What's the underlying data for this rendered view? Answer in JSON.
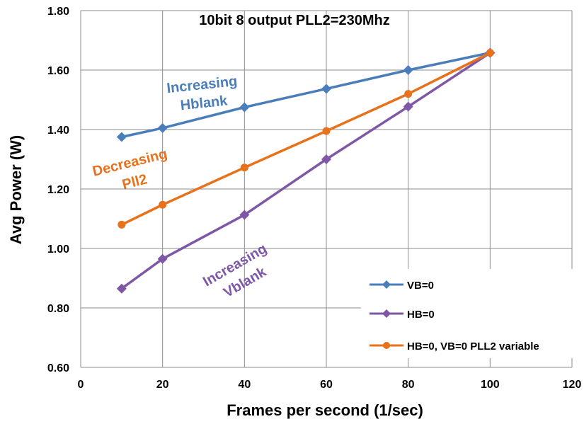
{
  "chart_data": {
    "type": "line",
    "title": "10bit 8 output PLL2=230Mhz",
    "xlabel": "Frames per second (1/sec)",
    "ylabel": "Avg Power (W)",
    "xlim": [
      0,
      120
    ],
    "ylim": [
      0.6,
      1.8
    ],
    "x_ticks": [
      "0",
      "20",
      "40",
      "60",
      "80",
      "100",
      "120"
    ],
    "y_ticks": [
      "0.60",
      "0.80",
      "1.00",
      "1.20",
      "1.40",
      "1.60",
      "1.80"
    ],
    "grid": "vertical and horizontal",
    "legend_position": "bottom-right",
    "series": [
      {
        "name": "VB=0",
        "color": "#4a7ebb",
        "marker": "diamond",
        "points": [
          [
            10,
            1.375
          ],
          [
            20,
            1.405
          ],
          [
            40,
            1.475
          ],
          [
            60,
            1.537
          ],
          [
            80,
            1.6
          ],
          [
            100,
            1.658
          ]
        ]
      },
      {
        "name": "HB=0",
        "color": "#7e57a6",
        "marker": "diamond",
        "points": [
          [
            10,
            0.865
          ],
          [
            20,
            0.965
          ],
          [
            40,
            1.113
          ],
          [
            60,
            1.3
          ],
          [
            80,
            1.477
          ],
          [
            100,
            1.658
          ]
        ]
      },
      {
        "name": "HB=0, VB=0 PLL2 variable",
        "color": "#e8711c",
        "marker": "circle",
        "points": [
          [
            10,
            1.08
          ],
          [
            20,
            1.147
          ],
          [
            40,
            1.272
          ],
          [
            60,
            1.395
          ],
          [
            80,
            1.52
          ],
          [
            100,
            1.658
          ]
        ]
      }
    ],
    "annotations": [
      {
        "lines": [
          "Increasing",
          "Hblank"
        ],
        "color": "#4a7ebb"
      },
      {
        "lines": [
          "Decreasing",
          "Pll2"
        ],
        "color": "#e8711c"
      },
      {
        "lines": [
          "Increasing",
          "Vblank"
        ],
        "color": "#7e57a6"
      }
    ]
  }
}
